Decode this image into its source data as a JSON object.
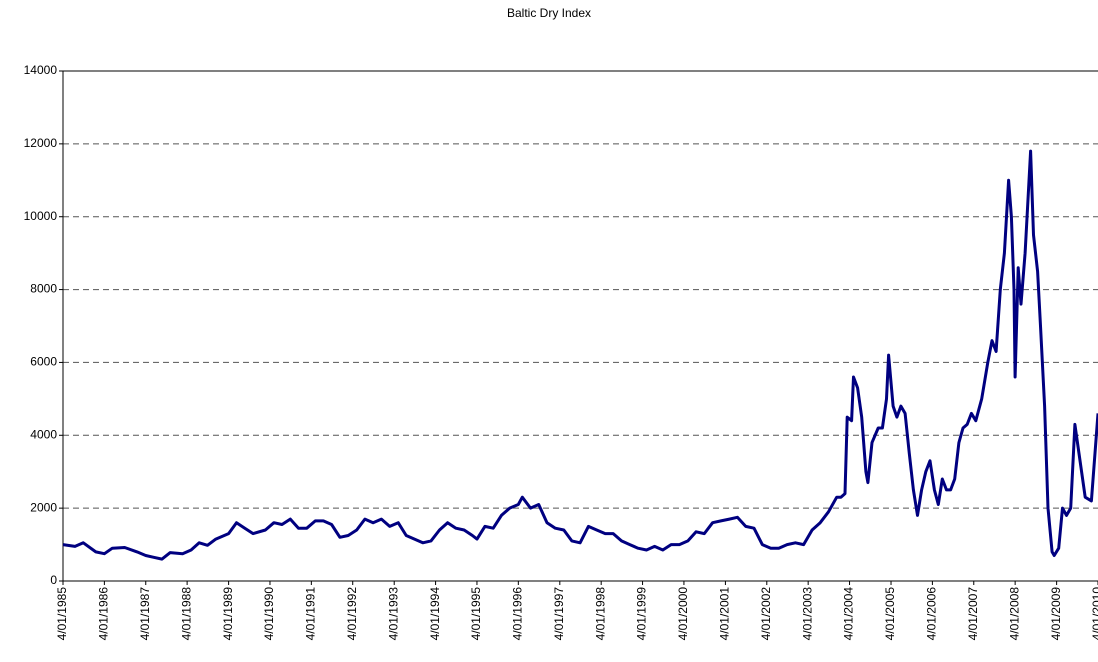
{
  "chart_data": {
    "type": "line",
    "title": "Baltic Dry Index",
    "color": "#000080",
    "x": [
      "1985-01-04",
      "1985-04-20",
      "1985-07-02",
      "1985-10-20",
      "1986-01-04",
      "1986-03-15",
      "1986-07-02",
      "1986-10-20",
      "1987-01-04",
      "1987-03-15",
      "1987-05-27",
      "1987-08-08",
      "1987-11-25",
      "1988-02-08",
      "1988-04-20",
      "1988-07-02",
      "1988-09-13",
      "1989-01-04",
      "1989-03-15",
      "1989-05-27",
      "1989-08-08",
      "1989-11-25",
      "1990-02-08",
      "1990-04-20",
      "1990-07-02",
      "1990-09-13",
      "1990-11-25",
      "1991-02-08",
      "1991-04-20",
      "1991-07-02",
      "1991-09-13",
      "1991-11-25",
      "1992-02-08",
      "1992-04-20",
      "1992-07-02",
      "1992-09-13",
      "1992-11-25",
      "1993-02-08",
      "1993-04-20",
      "1993-07-02",
      "1993-09-13",
      "1993-11-25",
      "1994-02-08",
      "1994-04-20",
      "1994-07-02",
      "1994-09-13",
      "1994-11-25",
      "1995-01-04",
      "1995-03-15",
      "1995-05-27",
      "1995-08-08",
      "1995-10-20",
      "1996-01-04",
      "1996-02-08",
      "1996-04-20",
      "1996-07-02",
      "1996-09-13",
      "1996-11-25",
      "1997-02-08",
      "1997-04-20",
      "1997-07-02",
      "1997-09-13",
      "1997-11-25",
      "1998-02-08",
      "1998-04-20",
      "1998-07-02",
      "1998-09-13",
      "1998-11-25",
      "1999-02-08",
      "1999-04-20",
      "1999-07-02",
      "1999-09-13",
      "1999-11-25",
      "2000-02-08",
      "2000-04-20",
      "2000-07-02",
      "2000-09-13",
      "2000-11-25",
      "2001-02-08",
      "2001-04-20",
      "2001-07-02",
      "2001-09-13",
      "2001-11-25",
      "2002-02-08",
      "2002-04-20",
      "2002-07-02",
      "2002-09-13",
      "2002-11-25",
      "2003-02-08",
      "2003-04-20",
      "2003-07-02",
      "2003-09-13",
      "2003-10-20",
      "2003-11-25",
      "2003-12-14",
      "2004-01-22",
      "2004-02-08",
      "2004-03-15",
      "2004-04-20",
      "2004-05-27",
      "2004-06-14",
      "2004-07-20",
      "2004-09-13",
      "2004-10-20",
      "2004-11-25",
      "2004-12-14",
      "2005-01-22",
      "2005-02-25",
      "2005-04-01",
      "2005-05-08",
      "2005-06-14",
      "2005-07-20",
      "2005-08-26",
      "2005-10-01",
      "2005-11-07",
      "2005-12-14",
      "2006-01-22",
      "2006-02-25",
      "2006-04-01",
      "2006-05-08",
      "2006-06-14",
      "2006-07-20",
      "2006-08-26",
      "2006-10-01",
      "2006-11-07",
      "2006-12-14",
      "2007-01-22",
      "2007-03-15",
      "2007-05-08",
      "2007-06-14",
      "2007-07-20",
      "2007-08-26",
      "2007-10-01",
      "2007-11-07",
      "2007-12-02",
      "2007-12-25",
      "2008-01-04",
      "2008-01-31",
      "2008-02-25",
      "2008-04-01",
      "2008-05-19",
      "2008-06-14",
      "2008-07-20",
      "2008-08-15",
      "2008-09-20",
      "2008-10-20",
      "2008-11-25",
      "2008-12-14",
      "2009-01-22",
      "2009-02-25",
      "2009-04-01",
      "2009-05-08",
      "2009-06-14",
      "2009-07-20",
      "2009-09-13",
      "2009-11-07",
      "2010-01-04"
    ],
    "values": [
      1000,
      950,
      1050,
      800,
      750,
      900,
      920,
      800,
      700,
      650,
      600,
      780,
      750,
      850,
      1050,
      980,
      1150,
      1300,
      1600,
      1450,
      1300,
      1400,
      1600,
      1550,
      1700,
      1450,
      1450,
      1650,
      1650,
      1550,
      1200,
      1250,
      1400,
      1700,
      1600,
      1700,
      1500,
      1600,
      1250,
      1150,
      1050,
      1100,
      1400,
      1600,
      1450,
      1400,
      1250,
      1150,
      1500,
      1450,
      1800,
      2000,
      2100,
      2300,
      2000,
      2100,
      1600,
      1450,
      1400,
      1100,
      1050,
      1500,
      1400,
      1300,
      1300,
      1100,
      1000,
      900,
      850,
      950,
      850,
      1000,
      1000,
      1100,
      1350,
      1300,
      1600,
      1650,
      1700,
      1750,
      1500,
      1450,
      1000,
      900,
      900,
      1000,
      1050,
      1000,
      1400,
      1600,
      1900,
      2300,
      2300,
      2400,
      4500,
      4400,
      5600,
      5300,
      4500,
      3000,
      2700,
      3800,
      4200,
      4200,
      5000,
      6200,
      4800,
      4500,
      4800,
      4600,
      3500,
      2500,
      1800,
      2500,
      3000,
      3300,
      2500,
      2100,
      2800,
      2500,
      2500,
      2800,
      3800,
      4200,
      4300,
      4600,
      4400,
      5000,
      6000,
      6600,
      6300,
      8000,
      9000,
      11000,
      10000,
      8000,
      5600,
      8600,
      7600,
      9000,
      11800,
      9500,
      8500,
      7000,
      4800,
      2000,
      800,
      700,
      900,
      2000,
      1800,
      2000,
      4300,
      3500,
      2300,
      2200,
      4600
    ],
    "xlim": [
      "1985-01-04",
      "2010-01-04"
    ],
    "xticks": [
      {
        "value": "1985-01-04",
        "label": "4/01/1985"
      },
      {
        "value": "1986-01-04",
        "label": "4/01/1986"
      },
      {
        "value": "1987-01-04",
        "label": "4/01/1987"
      },
      {
        "value": "1988-01-04",
        "label": "4/01/1988"
      },
      {
        "value": "1989-01-04",
        "label": "4/01/1989"
      },
      {
        "value": "1990-01-04",
        "label": "4/01/1990"
      },
      {
        "value": "1991-01-04",
        "label": "4/01/1991"
      },
      {
        "value": "1992-01-04",
        "label": "4/01/1992"
      },
      {
        "value": "1993-01-04",
        "label": "4/01/1993"
      },
      {
        "value": "1994-01-04",
        "label": "4/01/1994"
      },
      {
        "value": "1995-01-04",
        "label": "4/01/1995"
      },
      {
        "value": "1996-01-04",
        "label": "4/01/1996"
      },
      {
        "value": "1997-01-04",
        "label": "4/01/1997"
      },
      {
        "value": "1998-01-04",
        "label": "4/01/1998"
      },
      {
        "value": "1999-01-04",
        "label": "4/01/1999"
      },
      {
        "value": "2000-01-04",
        "label": "4/01/2000"
      },
      {
        "value": "2001-01-04",
        "label": "4/01/2001"
      },
      {
        "value": "2002-01-04",
        "label": "4/01/2002"
      },
      {
        "value": "2003-01-04",
        "label": "4/01/2003"
      },
      {
        "value": "2004-01-04",
        "label": "4/01/2004"
      },
      {
        "value": "2005-01-04",
        "label": "4/01/2005"
      },
      {
        "value": "2006-01-04",
        "label": "4/01/2006"
      },
      {
        "value": "2007-01-04",
        "label": "4/01/2007"
      },
      {
        "value": "2008-01-04",
        "label": "4/01/2008"
      },
      {
        "value": "2009-01-04",
        "label": "4/01/2009"
      },
      {
        "value": "2010-01-04",
        "label": "4/01/2010"
      }
    ],
    "ylim": [
      0,
      14000
    ],
    "yticks": [
      0,
      2000,
      4000,
      6000,
      8000,
      10000,
      12000,
      14000
    ],
    "grid": true
  }
}
